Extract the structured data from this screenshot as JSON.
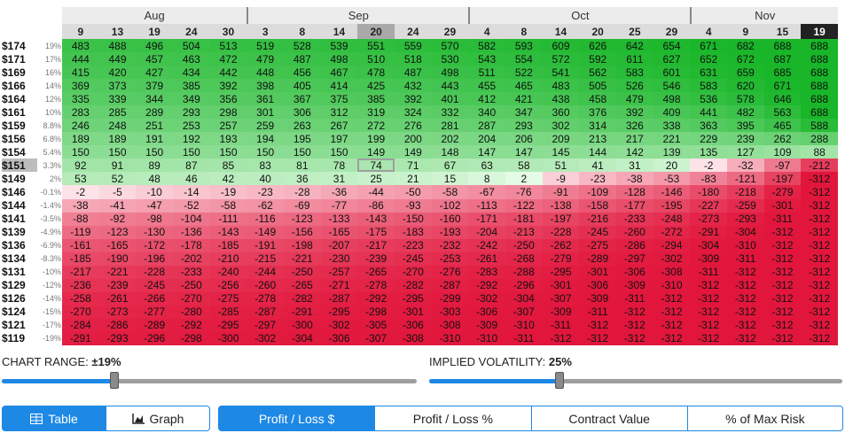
{
  "table": {
    "months": [
      {
        "name": "Aug",
        "days": [
          9,
          13,
          19,
          24,
          30
        ]
      },
      {
        "name": "Sep",
        "days": [
          3,
          8,
          14,
          20,
          24,
          29
        ]
      },
      {
        "name": "Oct",
        "days": [
          4,
          8,
          14,
          20,
          25,
          29
        ]
      },
      {
        "name": "Nov",
        "days": [
          4,
          9,
          15,
          19
        ]
      }
    ],
    "rows": [
      {
        "price": "$174",
        "change": "19%",
        "values": [
          483,
          488,
          496,
          504,
          513,
          519,
          528,
          539,
          551,
          559,
          570,
          582,
          593,
          609,
          626,
          642,
          654,
          671,
          682,
          688,
          688
        ]
      },
      {
        "price": "$171",
        "change": "17%",
        "values": [
          444,
          449,
          457,
          463,
          472,
          479,
          487,
          498,
          510,
          518,
          530,
          543,
          554,
          572,
          592,
          611,
          627,
          652,
          672,
          687,
          688
        ]
      },
      {
        "price": "$169",
        "change": "16%",
        "values": [
          415,
          420,
          427,
          434,
          442,
          448,
          456,
          467,
          478,
          487,
          498,
          511,
          522,
          541,
          562,
          583,
          601,
          631,
          659,
          685,
          688
        ]
      },
      {
        "price": "$166",
        "change": "14%",
        "values": [
          369,
          373,
          379,
          385,
          392,
          398,
          405,
          414,
          425,
          432,
          443,
          455,
          465,
          483,
          505,
          526,
          546,
          583,
          620,
          671,
          688
        ]
      },
      {
        "price": "$164",
        "change": "12%",
        "values": [
          335,
          339,
          344,
          349,
          356,
          361,
          367,
          375,
          385,
          392,
          401,
          412,
          421,
          438,
          458,
          479,
          498,
          536,
          578,
          646,
          688
        ]
      },
      {
        "price": "$161",
        "change": "10%",
        "values": [
          283,
          285,
          289,
          293,
          298,
          301,
          306,
          312,
          319,
          324,
          332,
          340,
          347,
          360,
          376,
          392,
          409,
          441,
          482,
          563,
          688
        ]
      },
      {
        "price": "$159",
        "change": "8.8%",
        "values": [
          246,
          248,
          251,
          253,
          257,
          259,
          263,
          267,
          272,
          276,
          281,
          287,
          293,
          302,
          314,
          326,
          338,
          363,
          395,
          465,
          588
        ]
      },
      {
        "price": "$156",
        "change": "6.8%",
        "values": [
          189,
          189,
          191,
          192,
          193,
          194,
          195,
          197,
          199,
          200,
          202,
          204,
          206,
          209,
          213,
          217,
          221,
          229,
          239,
          262,
          288
        ]
      },
      {
        "price": "$154",
        "change": "5.4%",
        "values": [
          150,
          150,
          150,
          150,
          150,
          150,
          150,
          150,
          149,
          149,
          148,
          147,
          147,
          145,
          144,
          142,
          139,
          135,
          127,
          109,
          88
        ]
      },
      {
        "price": "$151",
        "change": "3.3%",
        "values": [
          92,
          91,
          89,
          87,
          85,
          83,
          81,
          78,
          74,
          71,
          67,
          63,
          58,
          51,
          41,
          31,
          20,
          -2,
          -32,
          -97,
          -212
        ]
      },
      {
        "price": "$149",
        "change": "2%",
        "values": [
          53,
          52,
          48,
          46,
          42,
          40,
          36,
          31,
          25,
          21,
          15,
          8,
          2,
          -9,
          -23,
          -38,
          -53,
          -83,
          -121,
          -197,
          -312
        ]
      },
      {
        "price": "$146",
        "change": "-0.1%",
        "values": [
          -2,
          -5,
          -10,
          -14,
          -19,
          -23,
          -28,
          -36,
          -44,
          -50,
          -58,
          -67,
          -76,
          -91,
          -109,
          -128,
          -146,
          -180,
          -218,
          -279,
          -312
        ]
      },
      {
        "price": "$144",
        "change": "-1.4%",
        "values": [
          -38,
          -41,
          -47,
          -52,
          -58,
          -62,
          -69,
          -77,
          -86,
          -93,
          -102,
          -113,
          -122,
          -138,
          -158,
          -177,
          -195,
          -227,
          -259,
          -301,
          -312
        ]
      },
      {
        "price": "$141",
        "change": "-3.5%",
        "values": [
          -88,
          -92,
          -98,
          -104,
          -111,
          -116,
          -123,
          -133,
          -143,
          -150,
          -160,
          -171,
          -181,
          -197,
          -216,
          -233,
          -248,
          -273,
          -293,
          -311,
          -312
        ]
      },
      {
        "price": "$139",
        "change": "-4.9%",
        "values": [
          -119,
          -123,
          -130,
          -136,
          -143,
          -149,
          -156,
          -165,
          -175,
          -183,
          -193,
          -204,
          -213,
          -228,
          -245,
          -260,
          -272,
          -291,
          -304,
          -312,
          -312
        ]
      },
      {
        "price": "$136",
        "change": "-6.9%",
        "values": [
          -161,
          -165,
          -172,
          -178,
          -185,
          -191,
          -198,
          -207,
          -217,
          -223,
          -232,
          -242,
          -250,
          -262,
          -275,
          -286,
          -294,
          -304,
          -310,
          -312,
          -312
        ]
      },
      {
        "price": "$134",
        "change": "-8.3%",
        "values": [
          -185,
          -190,
          -196,
          -202,
          -210,
          -215,
          -221,
          -230,
          -239,
          -245,
          -253,
          -261,
          -268,
          -279,
          -289,
          -297,
          -302,
          -309,
          -311,
          -312,
          -312
        ]
      },
      {
        "price": "$131",
        "change": "-10%",
        "values": [
          -217,
          -221,
          -228,
          -233,
          -240,
          -244,
          -250,
          -257,
          -265,
          -270,
          -276,
          -283,
          -288,
          -295,
          -301,
          -306,
          -308,
          -311,
          -312,
          -312,
          -312
        ]
      },
      {
        "price": "$129",
        "change": "-12%",
        "values": [
          -236,
          -239,
          -245,
          -250,
          -256,
          -260,
          -265,
          -271,
          -278,
          -282,
          -287,
          -292,
          -296,
          -301,
          -306,
          -309,
          -310,
          -312,
          -312,
          -312,
          -312
        ]
      },
      {
        "price": "$126",
        "change": "-14%",
        "values": [
          -258,
          -261,
          -266,
          -270,
          -275,
          -278,
          -282,
          -287,
          -292,
          -295,
          -299,
          -302,
          -304,
          -307,
          -309,
          -311,
          -312,
          -312,
          -312,
          -312,
          -312
        ]
      },
      {
        "price": "$124",
        "change": "-15%",
        "values": [
          -270,
          -273,
          -277,
          -280,
          -285,
          -287,
          -291,
          -295,
          -298,
          -301,
          -303,
          -306,
          -307,
          -309,
          -311,
          -312,
          -312,
          -312,
          -312,
          -312,
          -312
        ]
      },
      {
        "price": "$121",
        "change": "-17%",
        "values": [
          -284,
          -286,
          -289,
          -292,
          -295,
          -297,
          -300,
          -302,
          -305,
          -306,
          -308,
          -309,
          -310,
          -311,
          -312,
          -312,
          -312,
          -312,
          -312,
          -312,
          -312
        ]
      },
      {
        "price": "$119",
        "change": "-19%",
        "values": [
          -291,
          -293,
          -296,
          -298,
          -300,
          -302,
          -304,
          -306,
          -307,
          -308,
          -310,
          -310,
          -311,
          -312,
          -312,
          -312,
          -312,
          -312,
          -312,
          -312,
          -312
        ]
      }
    ]
  },
  "controls": {
    "chart_range": {
      "label": "CHART RANGE:",
      "value": "±19%"
    },
    "implied_volatility": {
      "label": "IMPLIED VOLATILITY:",
      "value": "25%"
    }
  },
  "view_tabs": [
    "Table",
    "Graph"
  ],
  "metric_tabs": [
    "Profit / Loss $",
    "Profit / Loss %",
    "Contract Value",
    "% of Max Risk"
  ]
}
